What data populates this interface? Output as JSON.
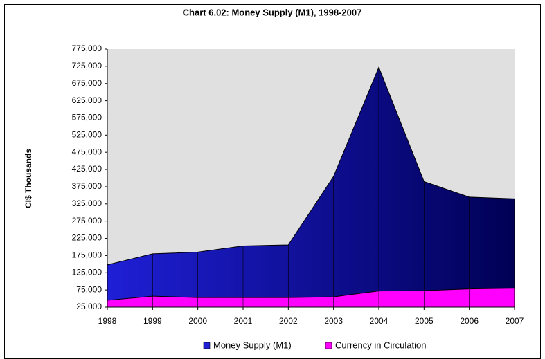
{
  "chart_data": {
    "type": "area",
    "title": "Chart 6.02: Money Supply (M1), 1998-2007",
    "y_label": "CI$ Thousands",
    "categories": [
      "1998",
      "1999",
      "2000",
      "2001",
      "2002",
      "2003",
      "2004",
      "2005",
      "2006",
      "2007"
    ],
    "series": [
      {
        "name": "Money Supply (M1)",
        "color": "#1f1fd6",
        "values": [
          148000,
          180000,
          185000,
          203000,
          206000,
          405000,
          722000,
          390000,
          345000,
          340000
        ]
      },
      {
        "name": "Currency in Circulation",
        "color": "#ff00ff",
        "values": [
          45000,
          57000,
          53000,
          53000,
          53000,
          55000,
          72000,
          73000,
          78000,
          80000
        ]
      }
    ],
    "ylim": [
      25000,
      775000
    ],
    "yticks": [
      {
        "value": 25000,
        "label": "25,000"
      },
      {
        "value": 75000,
        "label": "75,000"
      },
      {
        "value": 125000,
        "label": "125,000"
      },
      {
        "value": 175000,
        "label": "175,000"
      },
      {
        "value": 225000,
        "label": "225,000"
      },
      {
        "value": 275000,
        "label": "275,000"
      },
      {
        "value": 325000,
        "label": "325,000"
      },
      {
        "value": 375000,
        "label": "375,000"
      },
      {
        "value": 425000,
        "label": "425,000"
      },
      {
        "value": 475000,
        "label": "475,000"
      },
      {
        "value": 525000,
        "label": "525,000"
      },
      {
        "value": 575000,
        "label": "575,000"
      },
      {
        "value": 625000,
        "label": "625,000"
      },
      {
        "value": 675000,
        "label": "675,000"
      },
      {
        "value": 725000,
        "label": "725,000"
      },
      {
        "value": 775000,
        "label": "775,000"
      }
    ],
    "legend": "bottom"
  }
}
